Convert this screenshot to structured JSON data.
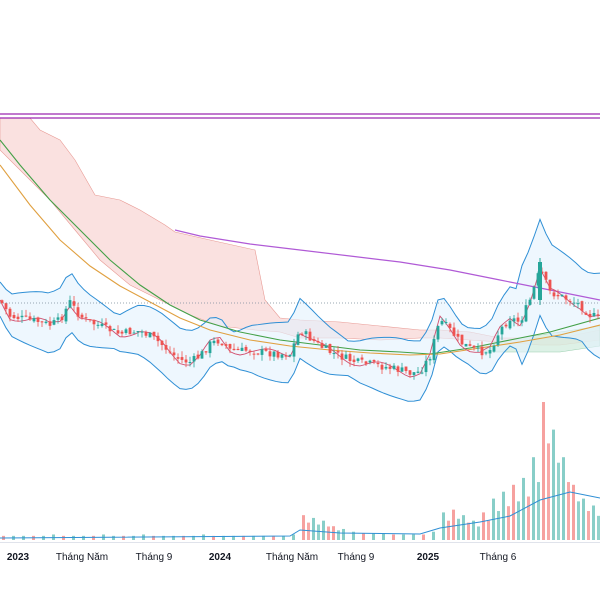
{
  "chart_data": {
    "type": "candlestick",
    "panels": [
      "price",
      "volume"
    ],
    "colors": {
      "up": "#26a69a",
      "down": "#ef5350",
      "ma_long": "#b05ad6",
      "ma_mid": "#43a047",
      "ma_slow": "#e0a040",
      "bollinger": "#2f8fd5",
      "bollinger_fill": "#e3f2fd",
      "cloud_bear": "#f8d7d5",
      "cloud_bull": "#d5eee0",
      "resistance": "#9c27b0",
      "volume_ma": "#2f8fd5"
    },
    "x_ticks": [
      {
        "label": "2023",
        "major": true
      },
      {
        "label": "Tháng Năm",
        "major": false
      },
      {
        "label": "Tháng 9",
        "major": false
      },
      {
        "label": "2024",
        "major": true
      },
      {
        "label": "Tháng Năm",
        "major": false
      },
      {
        "label": "Tháng 9",
        "major": false
      },
      {
        "label": "2025",
        "major": true
      },
      {
        "label": "Tháng 6",
        "major": false
      }
    ],
    "price_series": {
      "close_path": [
        [
          0,
          300
        ],
        [
          10,
          316
        ],
        [
          20,
          318
        ],
        [
          30,
          320
        ],
        [
          40,
          322
        ],
        [
          50,
          325
        ],
        [
          60,
          320
        ],
        [
          70,
          302
        ],
        [
          80,
          316
        ],
        [
          90,
          322
        ],
        [
          100,
          326
        ],
        [
          110,
          330
        ],
        [
          120,
          334
        ],
        [
          130,
          332
        ],
        [
          140,
          331
        ],
        [
          150,
          336
        ],
        [
          160,
          343
        ],
        [
          170,
          352
        ],
        [
          180,
          360
        ],
        [
          190,
          362
        ],
        [
          200,
          356
        ],
        [
          210,
          344
        ],
        [
          220,
          340
        ],
        [
          230,
          350
        ],
        [
          240,
          351
        ],
        [
          250,
          350
        ],
        [
          260,
          352
        ],
        [
          270,
          353
        ],
        [
          280,
          354
        ],
        [
          290,
          354
        ],
        [
          300,
          330
        ],
        [
          310,
          338
        ],
        [
          320,
          346
        ],
        [
          330,
          352
        ],
        [
          340,
          356
        ],
        [
          350,
          360
        ],
        [
          360,
          363
        ],
        [
          370,
          364
        ],
        [
          380,
          366
        ],
        [
          390,
          368
        ],
        [
          400,
          370
        ],
        [
          410,
          373
        ],
        [
          420,
          372
        ],
        [
          430,
          356
        ],
        [
          440,
          320
        ],
        [
          450,
          330
        ],
        [
          460,
          342
        ],
        [
          470,
          348
        ],
        [
          480,
          352
        ],
        [
          490,
          350
        ],
        [
          500,
          330
        ],
        [
          510,
          318
        ],
        [
          520,
          322
        ],
        [
          530,
          300
        ],
        [
          540,
          270
        ],
        [
          550,
          292
        ],
        [
          560,
          296
        ],
        [
          570,
          300
        ],
        [
          580,
          305
        ],
        [
          590,
          315
        ],
        [
          600,
          318
        ]
      ]
    },
    "volume_series": [
      3,
      3,
      3,
      3,
      3,
      4,
      3,
      3,
      3,
      3,
      4,
      3,
      3,
      3,
      4,
      3,
      3,
      3,
      3,
      3,
      4,
      3,
      3,
      3,
      3,
      3,
      3,
      3,
      3,
      4,
      18,
      16,
      14,
      10,
      8,
      6,
      5,
      5,
      5,
      4,
      4,
      4,
      4,
      6,
      20,
      22,
      18,
      14,
      20,
      30,
      35,
      40,
      45,
      60,
      100,
      80,
      60,
      40,
      30,
      25
    ]
  }
}
